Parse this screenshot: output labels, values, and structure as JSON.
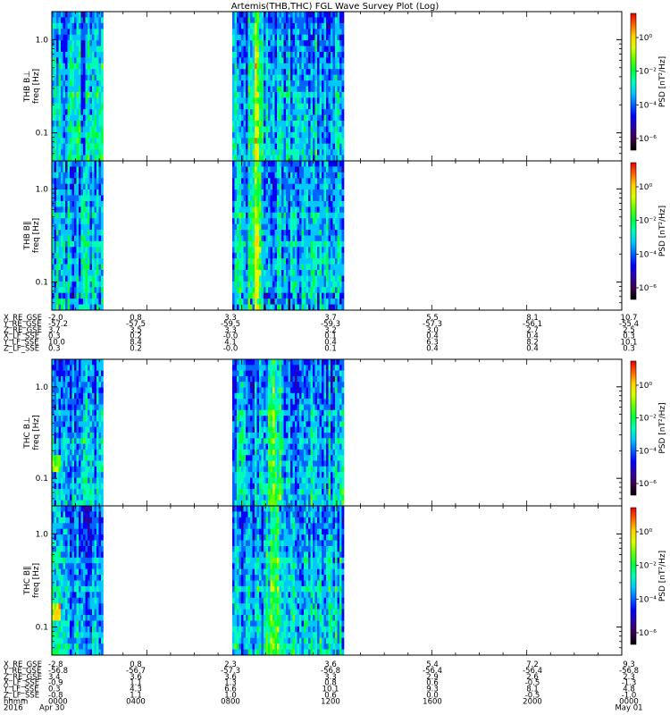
{
  "title": "Artemis(THB,THC) FGL Wave Survey Plot (Log)",
  "colors": {
    "colormap": [
      "#000000",
      "#3c004a",
      "#2a00a8",
      "#0000ff",
      "#0064ff",
      "#00c8ff",
      "#00ffb4",
      "#00ff3c",
      "#64ff00",
      "#dcff00",
      "#ffd200",
      "#ff6400",
      "#e80000"
    ]
  },
  "chart_data": [
    {
      "type": "heatmap",
      "panel": "THB B_L",
      "ylabel_lines": [
        "THB B⊥",
        "freq [Hz]"
      ],
      "yscale": "log",
      "yticks": [
        1.0,
        0.1
      ],
      "ytick_labels": [
        "1.0",
        "0.1"
      ],
      "ylim": [
        0.05,
        2.0
      ],
      "xlim_hours": [
        0,
        24
      ],
      "data_intervals_hours": [
        [
          0,
          2.1
        ],
        [
          7.6,
          12.3
        ]
      ],
      "colorbar": {
        "label": "PSD [nT²/Hz]",
        "scale": "log",
        "ticks": [
          "10⁰",
          "10⁻²",
          "10⁻⁴",
          "10⁻⁶"
        ]
      }
    },
    {
      "type": "heatmap",
      "panel": "THB B_par",
      "ylabel_lines": [
        "THB B∥",
        "freq [Hz]"
      ],
      "yscale": "log",
      "yticks": [
        1.0,
        0.1
      ],
      "ytick_labels": [
        "1.0",
        "0.1"
      ],
      "ylim": [
        0.05,
        2.0
      ],
      "xlim_hours": [
        0,
        24
      ],
      "data_intervals_hours": [
        [
          0,
          2.1
        ],
        [
          7.6,
          12.3
        ]
      ],
      "colorbar": {
        "label": "PSD [nT²/Hz]",
        "scale": "log",
        "ticks": [
          "10⁰",
          "10⁻²",
          "10⁻⁴",
          "10⁻⁶"
        ]
      }
    },
    {
      "type": "heatmap",
      "panel": "THC B_L",
      "ylabel_lines": [
        "THC B⊥",
        "freq [Hz]"
      ],
      "yscale": "log",
      "yticks": [
        1.0,
        0.1
      ],
      "ytick_labels": [
        "1.0",
        "0.1"
      ],
      "ylim": [
        0.05,
        2.0
      ],
      "xlim_hours": [
        0,
        24
      ],
      "data_intervals_hours": [
        [
          0,
          2.1
        ],
        [
          7.6,
          12.3
        ]
      ],
      "colorbar": {
        "label": "PSD [nT²/Hz]",
        "scale": "log",
        "ticks": [
          "10⁰",
          "10⁻²",
          "10⁻⁴",
          "10⁻⁶"
        ]
      }
    },
    {
      "type": "heatmap",
      "panel": "THC B_par",
      "ylabel_lines": [
        "THC B∥",
        "freq [Hz]"
      ],
      "yscale": "log",
      "yticks": [
        1.0,
        0.1
      ],
      "ytick_labels": [
        "1.0",
        "0.1"
      ],
      "ylim": [
        0.05,
        2.0
      ],
      "xlim_hours": [
        0,
        24
      ],
      "data_intervals_hours": [
        [
          0,
          2.1
        ],
        [
          7.6,
          12.3
        ]
      ],
      "colorbar": {
        "label": "PSD [nT²/Hz]",
        "scale": "log",
        "ticks": [
          "10⁰",
          "10⁻²",
          "10⁻⁴",
          "10⁻⁶"
        ]
      }
    }
  ],
  "ephemeris_thb": {
    "rows": [
      {
        "label": "X_RE_GSE",
        "values": [
          "-2.0",
          "0.8",
          "3.3",
          "3.7",
          "5.5",
          "8.1",
          "10.7"
        ]
      },
      {
        "label": "Y_RE_GSE",
        "values": [
          "-57.2",
          "-57.5",
          "-59.5",
          "-59.3",
          "-57.3",
          "-56.1",
          "-55.4"
        ]
      },
      {
        "label": "Z_RE_GSE",
        "values": [
          "3.7",
          "3.5",
          "3.3",
          "3.2",
          "3.0",
          "2.7",
          "2.5"
        ]
      },
      {
        "label": "X_LF_SSE",
        "values": [
          "0.3",
          "0.2",
          "-0.0",
          "0.1",
          "0.4",
          "0.4",
          "0.3"
        ]
      },
      {
        "label": "Y_LF_SSE",
        "values": [
          "10.0",
          "8.4",
          "4.1",
          "0.4",
          "6.3",
          "8.2",
          "10.1"
        ]
      },
      {
        "label": "Z_LF_SSE",
        "values": [
          "0.3",
          "0.2",
          "-0.0",
          "0.1",
          "0.4",
          "0.4",
          "0.3"
        ]
      }
    ]
  },
  "ephemeris_thc": {
    "rows": [
      {
        "label": "X_RE_GSE",
        "values": [
          "-2.8",
          "0.8",
          "2.3",
          "3.6",
          "5.4",
          "7.2",
          "9.3"
        ]
      },
      {
        "label": "Y_RE_GSE",
        "values": [
          "-56.8",
          "-56.7",
          "-57.3",
          "-56.8",
          "-56.4",
          "-56.4",
          "-56.8"
        ]
      },
      {
        "label": "Z_RE_GSE",
        "values": [
          "3.4",
          "3.6",
          "3.6",
          "3.3",
          "2.9",
          "2.6",
          "2.3"
        ]
      },
      {
        "label": "X_LF_SSE",
        "values": [
          "-0.9",
          "1.1",
          "1.3",
          "0.8",
          "0.6",
          "-0.5",
          "-1.3"
        ]
      },
      {
        "label": "Y_LF_SSE",
        "values": [
          "0.3",
          "4.3",
          "6.6",
          "10.1",
          "9.3",
          "8.1",
          "4.8"
        ]
      },
      {
        "label": "Z_LF_SSE",
        "values": [
          "-0.8",
          "1.1",
          "1.0",
          "0.6",
          "0.0",
          "-0.5",
          "-1.0"
        ]
      },
      {
        "label": "hhmm",
        "values": [
          "0000",
          "0400",
          "0800",
          "1200",
          "1600",
          "2000",
          "0000"
        ]
      }
    ],
    "date_row": {
      "label": "2016",
      "values": [
        "Apr 30",
        "",
        "",
        "",
        "",
        "",
        "May 01"
      ]
    }
  }
}
